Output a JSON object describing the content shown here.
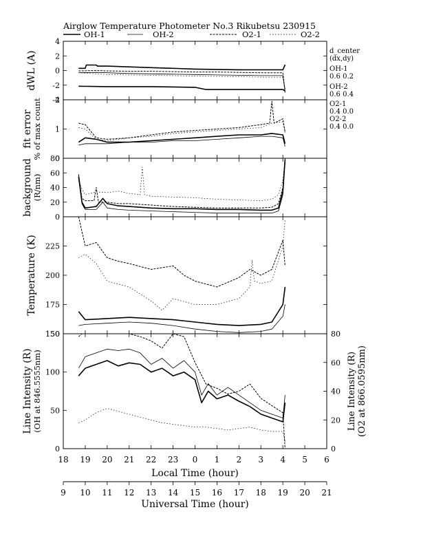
{
  "title": "Airglow Temperature Photometer No.3  Rikubetsu    230915",
  "legend": [
    {
      "name": "OH-1",
      "dash": "solid",
      "width": 1.6
    },
    {
      "name": "OH-2",
      "dash": "solid",
      "width": 0.8
    },
    {
      "name": "O2-1",
      "dash": "dense",
      "width": 1.0
    },
    {
      "name": "O2-2",
      "dash": "sparse",
      "width": 0.7
    }
  ],
  "right_notes": [
    "d_center",
    "(dx,dy)",
    "OH-1",
    "0.6  0.2",
    "OH-2",
    "0.6  0.4",
    "O2-1",
    "0.4  0.0",
    "O2-2",
    "0.4  0.0"
  ],
  "chart_data": {
    "type": "line",
    "x_local": {
      "label": "Local Time (hour)",
      "range": [
        18,
        30
      ],
      "ticks": [
        "18",
        "19",
        "20",
        "21",
        "22",
        "23",
        "0",
        "1",
        "2",
        "3",
        "4",
        "5",
        "6"
      ]
    },
    "x_universal": {
      "label": "Universal Time (hour)",
      "range": [
        9,
        21
      ],
      "ticks": [
        "9",
        "10",
        "11",
        "12",
        "13",
        "14",
        "15",
        "16",
        "17",
        "18",
        "19",
        "20",
        "21"
      ]
    },
    "panels": [
      {
        "id": "dwl",
        "ylabel": [
          "dWL (A)"
        ],
        "ylim": [
          -4,
          4
        ],
        "yticks": [
          -4,
          -2,
          0,
          2,
          4
        ],
        "series": [
          {
            "name": "OH-1",
            "x": [
              18.7,
              19.0,
              19.05,
              19.5,
              19.55,
              20.0,
              21.0,
              22.0,
              23.0,
              24.0,
              25.0,
              26.0,
              27.0,
              28.0,
              28.1
            ],
            "y": [
              0.3,
              0.3,
              0.75,
              0.75,
              0.6,
              0.6,
              0.5,
              0.4,
              0.3,
              0.2,
              0.15,
              0.1,
              0.1,
              0.1,
              0.8
            ]
          },
          {
            "name": "OH-2",
            "x": [
              18.7,
              19.5,
              20.0,
              21.0,
              22.0,
              23.0,
              24.0,
              25.0,
              26.0,
              27.0,
              28.0,
              28.1
            ],
            "y": [
              -0.3,
              -0.25,
              -0.3,
              -0.4,
              -0.45,
              -0.5,
              -0.55,
              -0.6,
              -0.65,
              -0.7,
              -0.7,
              -2.6
            ]
          },
          {
            "name": "O2-1",
            "x": [
              18.7,
              19.5,
              20.0,
              21.0,
              22.0,
              23.0,
              24.0,
              25.0,
              26.0,
              27.0,
              28.0,
              28.1
            ],
            "y": [
              -0.05,
              0.0,
              -0.05,
              -0.1,
              -0.1,
              -0.15,
              -0.2,
              -0.2,
              -0.25,
              -0.3,
              -0.3,
              -3.0
            ]
          },
          {
            "name": "O2-2",
            "x": [
              18.7,
              19.5,
              20.0,
              21.0,
              22.0,
              23.0,
              24.0,
              25.0,
              26.0,
              27.0,
              28.0,
              28.1
            ],
            "y": [
              -0.3,
              -0.45,
              -0.55,
              -0.6,
              -0.65,
              -0.7,
              -0.75,
              -0.8,
              -0.85,
              -0.9,
              -0.9,
              -2.8
            ]
          },
          {
            "name": "OH-1b",
            "x": [
              18.7,
              20.0,
              22.0,
              24.0,
              24.5,
              25.0,
              26.0,
              27.0,
              28.0,
              28.1
            ],
            "y": [
              -2.15,
              -2.2,
              -2.2,
              -2.3,
              -2.6,
              -2.6,
              -2.6,
              -2.6,
              -2.6,
              -2.8
            ]
          }
        ]
      },
      {
        "id": "fit",
        "ylabel": [
          "fit error",
          "% of max count"
        ],
        "ylim": [
          0,
          2
        ],
        "yticks": [
          0,
          1,
          2
        ],
        "series": [
          {
            "name": "OH-1",
            "x": [
              18.7,
              19.0,
              19.5,
              20.0,
              21.0,
              22.0,
              23.0,
              24.0,
              25.0,
              26.0,
              27.0,
              27.5,
              28.0,
              28.1
            ],
            "y": [
              0.55,
              0.7,
              0.65,
              0.55,
              0.55,
              0.6,
              0.65,
              0.7,
              0.75,
              0.8,
              0.8,
              0.85,
              0.8,
              0.5
            ]
          },
          {
            "name": "OH-2",
            "x": [
              18.7,
              19.0,
              19.5,
              20.0,
              21.0,
              22.0,
              23.0,
              24.0,
              25.0,
              26.0,
              27.0,
              27.5,
              28.0,
              28.1
            ],
            "y": [
              0.45,
              0.5,
              0.5,
              0.5,
              0.55,
              0.55,
              0.6,
              0.6,
              0.65,
              0.7,
              0.75,
              0.75,
              0.7,
              0.4
            ]
          },
          {
            "name": "O2-1",
            "x": [
              18.7,
              19.0,
              19.5,
              20.0,
              21.0,
              22.0,
              23.0,
              24.0,
              25.0,
              26.0,
              27.0,
              27.4,
              27.5,
              27.6,
              28.0,
              28.1
            ],
            "y": [
              1.2,
              1.15,
              0.7,
              0.65,
              0.7,
              0.8,
              0.9,
              0.95,
              1.0,
              1.05,
              1.15,
              1.2,
              1.95,
              1.2,
              1.35,
              0.9
            ]
          },
          {
            "name": "O2-2",
            "x": [
              18.7,
              19.0,
              19.5,
              20.0,
              21.0,
              22.0,
              23.0,
              24.0,
              25.0,
              26.0,
              27.0,
              27.5,
              28.0,
              28.1
            ],
            "y": [
              1.05,
              1.0,
              0.65,
              0.6,
              0.7,
              0.75,
              0.85,
              0.9,
              0.95,
              1.0,
              1.05,
              1.2,
              1.25,
              0.85
            ]
          }
        ]
      },
      {
        "id": "bg",
        "ylabel": [
          "background",
          "(R/nm)"
        ],
        "ylim": [
          0,
          80
        ],
        "yticks": [
          0,
          20,
          40,
          60,
          80
        ],
        "series": [
          {
            "name": "OH-1",
            "x": [
              18.7,
              18.85,
              19.0,
              19.5,
              19.8,
              20.0,
              20.5,
              21.0,
              22.0,
              23.0,
              24.0,
              25.0,
              26.0,
              27.0,
              27.5,
              27.8,
              28.0,
              28.1
            ],
            "y": [
              55,
              20,
              12,
              14,
              25,
              18,
              15,
              14,
              12,
              11,
              11,
              10,
              10,
              9,
              9,
              12,
              35,
              78
            ]
          },
          {
            "name": "OH-2",
            "x": [
              18.7,
              18.85,
              19.0,
              19.5,
              19.8,
              20.0,
              20.5,
              21.0,
              22.0,
              23.0,
              24.0,
              25.0,
              26.0,
              27.0,
              27.5,
              27.8,
              28.0,
              28.1
            ],
            "y": [
              58,
              18,
              10,
              10,
              20,
              12,
              10,
              9,
              8,
              7,
              6,
              5,
              5,
              5,
              5,
              8,
              30,
              75
            ]
          },
          {
            "name": "O2-1",
            "x": [
              18.7,
              18.85,
              19.0,
              19.4,
              19.5,
              19.6,
              20.0,
              20.5,
              21.0,
              22.0,
              22.5,
              23.0,
              24.0,
              25.0,
              26.0,
              27.0,
              27.5,
              27.8,
              28.0,
              28.1
            ],
            "y": [
              58,
              25,
              22,
              22,
              40,
              20,
              20,
              18,
              18,
              16,
              15,
              14,
              13,
              12,
              12,
              12,
              13,
              18,
              40,
              80
            ]
          },
          {
            "name": "O2-2",
            "x": [
              18.7,
              18.85,
              19.0,
              19.5,
              20.0,
              20.5,
              21.0,
              21.5,
              21.6,
              21.7,
              22.0,
              23.0,
              24.0,
              25.0,
              26.0,
              27.0,
              27.5,
              27.8,
              28.0,
              28.1
            ],
            "y": [
              50,
              38,
              30,
              34,
              33,
              35,
              32,
              30,
              68,
              30,
              28,
              27,
              26,
              24,
              23,
              22,
              24,
              30,
              50,
              80
            ]
          }
        ]
      },
      {
        "id": "temp",
        "ylabel": [
          "Temperature (K)"
        ],
        "ylim": [
          150,
          250
        ],
        "yticks": [
          150,
          175,
          200,
          225
        ],
        "series": [
          {
            "name": "OH-1",
            "x": [
              18.7,
              19.0,
              20.0,
              21.0,
              22.0,
              23.0,
              24.0,
              25.0,
              26.0,
              27.0,
              27.5,
              28.0,
              28.1
            ],
            "y": [
              169,
              162,
              163,
              164,
              163,
              162,
              160,
              158,
              157,
              158,
              160,
              175,
              190
            ]
          },
          {
            "name": "OH-2",
            "x": [
              18.7,
              19.0,
              20.0,
              21.0,
              22.0,
              23.0,
              24.0,
              25.0,
              26.0,
              27.0,
              27.5,
              28.0,
              28.1
            ],
            "y": [
              157,
              158,
              159,
              160,
              159,
              157,
              154,
              152,
              151,
              152,
              154,
              165,
              175
            ]
          },
          {
            "name": "O2-1",
            "x": [
              18.7,
              19.0,
              19.5,
              20.0,
              20.5,
              21.0,
              22.0,
              23.0,
              23.5,
              24.0,
              25.0,
              26.0,
              26.5,
              27.0,
              27.5,
              28.0,
              28.1
            ],
            "y": [
              250,
              225,
              228,
              215,
              212,
              210,
              205,
              208,
              200,
              195,
              190,
              198,
              205,
              200,
              205,
              230,
              208
            ]
          },
          {
            "name": "O2-2",
            "x": [
              18.7,
              19.0,
              19.5,
              20.0,
              21.0,
              22.0,
              22.5,
              23.0,
              24.0,
              25.0,
              26.0,
              26.5,
              26.6,
              26.7,
              27.0,
              27.5,
              28.0,
              28.1
            ],
            "y": [
              215,
              218,
              210,
              195,
              190,
              178,
              170,
              180,
              175,
              175,
              180,
              190,
              213,
              195,
              193,
              195,
              225,
              248
            ]
          }
        ]
      },
      {
        "id": "li",
        "ylabel": [
          "Line Intensity (R)",
          "(OH at 846.5555nm)"
        ],
        "ylim": [
          0,
          150
        ],
        "yticks": [
          0,
          50,
          100,
          150
        ],
        "y2label": [
          "Line Intensity (R)",
          "(O2 at 866.0595nm)"
        ],
        "y2lim": [
          0,
          80
        ],
        "y2ticks": [
          0,
          20,
          40,
          60,
          80
        ],
        "series": [
          {
            "name": "OH-1",
            "axis": "left",
            "x": [
              18.7,
              19.0,
              19.5,
              20.0,
              20.5,
              21.0,
              21.5,
              22.0,
              22.5,
              23.0,
              23.5,
              24.0,
              24.3,
              24.6,
              25.0,
              25.5,
              26.0,
              26.5,
              27.0,
              27.5,
              28.0,
              28.1
            ],
            "y": [
              95,
              105,
              110,
              115,
              108,
              112,
              110,
              100,
              105,
              95,
              100,
              90,
              60,
              75,
              65,
              70,
              62,
              55,
              45,
              40,
              35,
              60
            ]
          },
          {
            "name": "OH-2",
            "axis": "left",
            "x": [
              18.7,
              19.0,
              19.5,
              20.0,
              20.5,
              21.0,
              21.5,
              22.0,
              22.5,
              23.0,
              23.5,
              24.0,
              24.3,
              24.6,
              25.0,
              25.5,
              26.0,
              26.5,
              27.0,
              27.5,
              28.0,
              28.1
            ],
            "y": [
              105,
              120,
              125,
              130,
              128,
              130,
              125,
              110,
              118,
              105,
              115,
              100,
              70,
              85,
              70,
              80,
              70,
              60,
              50,
              45,
              40,
              70
            ]
          },
          {
            "name": "O2-1",
            "axis": "right",
            "x": [
              18.7,
              19.0,
              19.5,
              20.0,
              20.5,
              21.0,
              21.5,
              22.0,
              22.5,
              23.0,
              23.5,
              24.0,
              24.5,
              25.0,
              25.5,
              26.0,
              26.5,
              27.0,
              27.5,
              28.0,
              28.1
            ],
            "y": [
              78,
              82,
              85,
              84,
              86,
              80,
              78,
              75,
              70,
              80,
              78,
              60,
              45,
              42,
              38,
              40,
              45,
              35,
              30,
              25,
              0
            ]
          },
          {
            "name": "O2-2",
            "axis": "right",
            "x": [
              18.7,
              19.0,
              19.5,
              20.0,
              20.5,
              21.0,
              21.5,
              22.0,
              22.5,
              23.0,
              23.5,
              24.0,
              24.5,
              25.0,
              25.5,
              26.0,
              26.5,
              27.0,
              27.5,
              28.0,
              28.1
            ],
            "y": [
              18,
              20,
              25,
              28,
              26,
              24,
              22,
              20,
              18,
              17,
              16,
              15,
              15,
              14,
              13,
              14,
              15,
              13,
              12,
              12,
              5
            ]
          }
        ]
      }
    ]
  }
}
